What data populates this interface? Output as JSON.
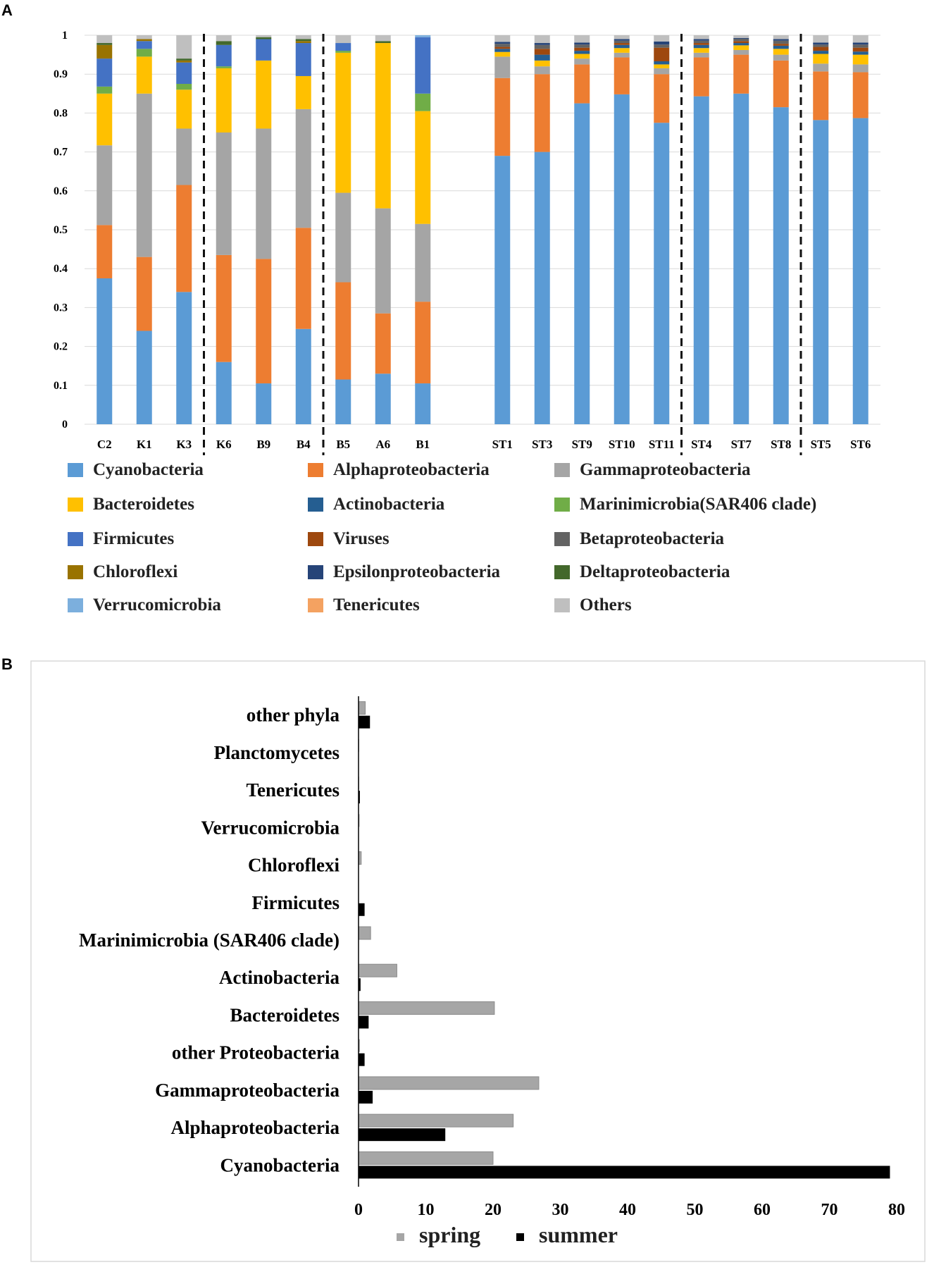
{
  "figure": {
    "panel_a_label": "A",
    "panel_b_label": "B"
  },
  "chart_data": [
    {
      "type": "bar",
      "subtype": "stacked-100",
      "panel": "A",
      "ylim": [
        0,
        1
      ],
      "yticks": [
        "0",
        "0.1",
        "0.2",
        "0.3",
        "0.4",
        "0.5",
        "0.6",
        "0.7",
        "0.8",
        "0.9",
        "1"
      ],
      "categories": [
        "C2",
        "K1",
        "K3",
        "K6",
        "B9",
        "B4",
        "B5",
        "A6",
        "B1",
        "ST1",
        "ST3",
        "ST9",
        "ST10",
        "ST11",
        "ST4",
        "ST7",
        "ST8",
        "ST5",
        "ST6"
      ],
      "group_separators_after": [
        "K3",
        "B4",
        "B1",
        "ST11",
        "ST8"
      ],
      "dashed_separators_after": [
        "K3",
        "B4",
        "ST11",
        "ST8"
      ],
      "series": [
        {
          "name": "Cyanobacteria",
          "color": "#5b9bd5",
          "values": [
            0.375,
            0.24,
            0.34,
            0.16,
            0.105,
            0.245,
            0.115,
            0.13,
            0.105,
            0.69,
            0.7,
            0.825,
            0.848,
            0.775,
            0.843,
            0.85,
            0.815,
            0.782,
            0.787
          ]
        },
        {
          "name": "Alphaproteobacteria",
          "color": "#ed7d31",
          "values": [
            0.137,
            0.19,
            0.275,
            0.275,
            0.32,
            0.26,
            0.25,
            0.155,
            0.21,
            0.2,
            0.2,
            0.1,
            0.095,
            0.125,
            0.1,
            0.1,
            0.12,
            0.125,
            0.118
          ]
        },
        {
          "name": "Gammaproteobacteria",
          "color": "#a5a5a5",
          "values": [
            0.205,
            0.42,
            0.145,
            0.315,
            0.335,
            0.305,
            0.23,
            0.27,
            0.2,
            0.055,
            0.02,
            0.015,
            0.012,
            0.015,
            0.012,
            0.012,
            0.015,
            0.02,
            0.02
          ]
        },
        {
          "name": "Bacteroidetes",
          "color": "#ffc000",
          "values": [
            0.133,
            0.095,
            0.1,
            0.165,
            0.175,
            0.085,
            0.36,
            0.425,
            0.29,
            0.012,
            0.015,
            0.012,
            0.012,
            0.01,
            0.012,
            0.012,
            0.015,
            0.025,
            0.025
          ]
        },
        {
          "name": "Actinobacteria",
          "color": "#255e91",
          "values": [
            0.0,
            0.0,
            0.0,
            0.0,
            0.0,
            0.0,
            0.0,
            0.0,
            0.0,
            0.008,
            0.015,
            0.008,
            0.008,
            0.008,
            0.008,
            0.006,
            0.008,
            0.008,
            0.008
          ]
        },
        {
          "name": "Marinimicrobia(SAR406 clade)",
          "color": "#70ad47",
          "values": [
            0.018,
            0.02,
            0.015,
            0.005,
            0.0,
            0.0,
            0.005,
            0.0,
            0.045,
            0.0,
            0.0,
            0.0,
            0.0,
            0.0,
            0.0,
            0.0,
            0.0,
            0.0,
            0.0
          ]
        },
        {
          "name": "Firmicutes",
          "color": "#4472c4",
          "values": [
            0.072,
            0.02,
            0.055,
            0.055,
            0.055,
            0.085,
            0.02,
            0.0,
            0.145,
            0.0,
            0.0,
            0.0,
            0.0,
            0.0,
            0.0,
            0.0,
            0.0,
            0.0,
            0.0
          ]
        },
        {
          "name": "Viruses",
          "color": "#9e480e",
          "values": [
            0.0,
            0.0,
            0.0,
            0.0,
            0.0,
            0.0,
            0.0,
            0.0,
            0.0,
            0.005,
            0.015,
            0.008,
            0.005,
            0.035,
            0.005,
            0.005,
            0.005,
            0.01,
            0.01
          ]
        },
        {
          "name": "Betaproteobacteria",
          "color": "#636363",
          "values": [
            0.0,
            0.0,
            0.0,
            0.0,
            0.0,
            0.0,
            0.0,
            0.0,
            0.0,
            0.008,
            0.01,
            0.008,
            0.006,
            0.008,
            0.006,
            0.006,
            0.008,
            0.006,
            0.008
          ]
        },
        {
          "name": "Chloroflexi",
          "color": "#997300",
          "values": [
            0.035,
            0.005,
            0.005,
            0.0,
            0.0,
            0.005,
            0.0,
            0.0,
            0.0,
            0.0,
            0.0,
            0.0,
            0.0,
            0.0,
            0.0,
            0.0,
            0.0,
            0.0,
            0.0
          ]
        },
        {
          "name": "Epsilonproteobacteria",
          "color": "#264478",
          "values": [
            0.0,
            0.0,
            0.0,
            0.0,
            0.0,
            0.0,
            0.0,
            0.0,
            0.0,
            0.005,
            0.005,
            0.005,
            0.004,
            0.008,
            0.004,
            0.002,
            0.004,
            0.005,
            0.005
          ]
        },
        {
          "name": "Deltaproteobacteria",
          "color": "#43682b",
          "values": [
            0.005,
            0.0,
            0.005,
            0.01,
            0.005,
            0.005,
            0.0,
            0.005,
            0.0,
            0.0,
            0.0,
            0.0,
            0.0,
            0.0,
            0.0,
            0.0,
            0.0,
            0.0,
            0.0
          ]
        },
        {
          "name": "Verrucomicrobia",
          "color": "#7cafdd",
          "values": [
            0.0,
            0.0,
            0.0,
            0.0,
            0.0,
            0.0,
            0.0,
            0.0,
            0.005,
            0.0,
            0.0,
            0.0,
            0.0,
            0.0,
            0.0,
            0.0,
            0.0,
            0.0,
            0.0
          ]
        },
        {
          "name": "Tenericutes",
          "color": "#f4a261",
          "values": [
            0.0,
            0.0,
            0.0,
            0.0,
            0.0,
            0.0,
            0.0,
            0.0,
            0.0,
            0.0,
            0.0,
            0.0,
            0.0,
            0.0,
            0.0,
            0.0,
            0.0,
            0.0,
            0.0
          ]
        },
        {
          "name": "Others",
          "color": "#bfbfbf",
          "values": [
            0.02,
            0.01,
            0.06,
            0.015,
            0.005,
            0.01,
            0.02,
            0.015,
            0.0,
            0.017,
            0.02,
            0.019,
            0.01,
            0.016,
            0.01,
            0.007,
            0.01,
            0.019,
            0.019
          ]
        }
      ],
      "legend": {
        "placement": "bottom",
        "columns": [
          [
            "Cyanobacteria",
            "Bacteroidetes",
            "Firmicutes",
            "Chloroflexi",
            "Verrucomicrobia"
          ],
          [
            "Alphaproteobacteria",
            "Actinobacteria",
            "Viruses",
            "Epsilonproteobacteria",
            "Tenericutes"
          ],
          [
            "Gammaproteobacteria",
            "Marinimicrobia(SAR406 clade)",
            "Betaproteobacteria",
            "Deltaproteobacteria",
            "Others"
          ]
        ]
      }
    },
    {
      "type": "bar",
      "subtype": "horizontal-grouped",
      "panel": "B",
      "xlim": [
        0,
        80
      ],
      "xticks": [
        "0",
        "10",
        "20",
        "30",
        "40",
        "50",
        "60",
        "70",
        "80"
      ],
      "categories": [
        "other phyla",
        "Planctomycetes",
        "Tenericutes",
        "Verrucomicrobia",
        "Chloroflexi",
        "Firmicutes",
        "Marinimicrobia (SAR406 clade)",
        "Actinobacteria",
        "Bacteroidetes",
        "other Proteobacteria",
        "Gammaproteobacteria",
        "Alphaproteobacteria",
        "Cyanobacteria"
      ],
      "series": [
        {
          "name": "spring",
          "color": "#a6a6a6",
          "values": [
            1.0,
            0.1,
            0.1,
            0.15,
            0.4,
            0.0,
            1.8,
            5.7,
            20.2,
            0.2,
            26.8,
            23.0,
            20.0
          ]
        },
        {
          "name": "summer",
          "color": "#000000",
          "values": [
            1.7,
            0.0,
            0.2,
            0.0,
            0.0,
            0.9,
            0.0,
            0.3,
            1.5,
            0.9,
            2.1,
            12.9,
            79.0
          ]
        }
      ],
      "legend": {
        "placement": "bottom",
        "entries": [
          "spring",
          "summer"
        ]
      }
    }
  ]
}
